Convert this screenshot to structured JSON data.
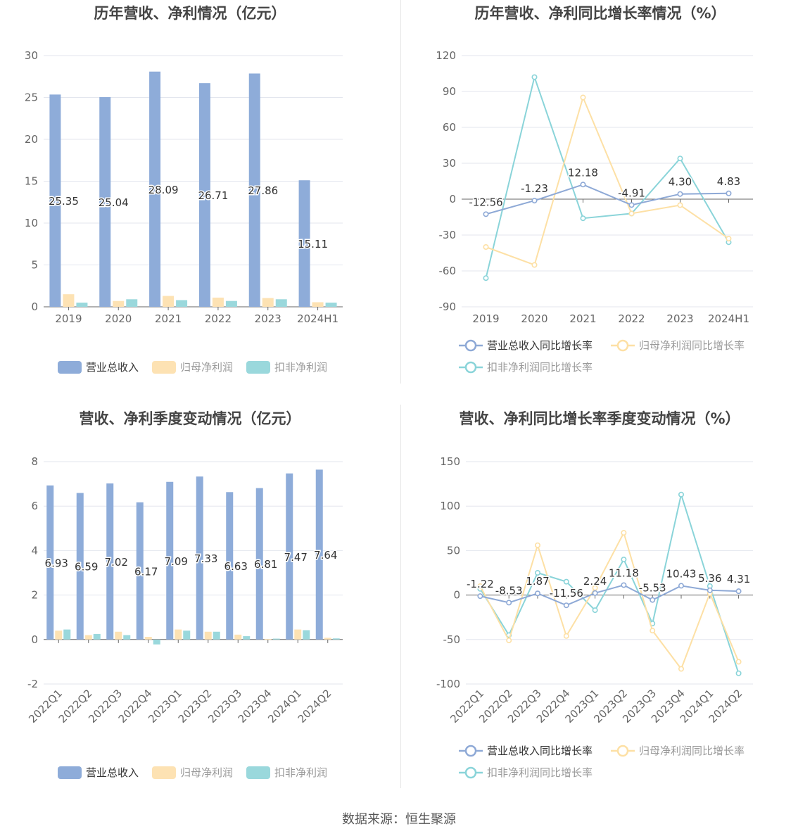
{
  "colors": {
    "revenue": "#8eacd9",
    "net_profit": "#fde2b3",
    "deducted_profit": "#9ad8dc",
    "revenue_line": "#8ea9d6",
    "net_line": "#fde0a5",
    "deducted_line": "#8ad4d9",
    "axis_text": "#666666",
    "title_text": "#444444",
    "grid": "#e3e6ee"
  },
  "footer": {
    "source": "数据来源：恒生聚源"
  },
  "chart_data": [
    {
      "type": "bar",
      "title": "历年营收、净利情况（亿元）",
      "categories": [
        "2019",
        "2020",
        "2021",
        "2022",
        "2023",
        "2024H1"
      ],
      "ylim": [
        0,
        30
      ],
      "yticks": [
        0,
        5,
        10,
        15,
        20,
        25,
        30
      ],
      "series": [
        {
          "name": "营业总收入",
          "values": [
            25.35,
            25.04,
            28.09,
            26.71,
            27.86,
            15.11
          ],
          "labels": [
            "25.35",
            "25.04",
            "28.09",
            "26.71",
            "27.86",
            "15.11"
          ]
        },
        {
          "name": "归母净利润",
          "values": [
            1.5,
            0.7,
            1.3,
            1.1,
            1.05,
            0.55
          ]
        },
        {
          "name": "扣非净利润",
          "values": [
            0.5,
            0.9,
            0.8,
            0.7,
            0.9,
            0.5
          ]
        }
      ],
      "legend": [
        "营业总收入",
        "归母净利润",
        "扣非净利润"
      ]
    },
    {
      "type": "line",
      "title": "历年营收、净利同比增长率情况（%）",
      "categories": [
        "2019",
        "2020",
        "2021",
        "2022",
        "2023",
        "2024H1"
      ],
      "ylim": [
        -90,
        120
      ],
      "yticks": [
        -90,
        -60,
        -30,
        0,
        30,
        60,
        90,
        120
      ],
      "series": [
        {
          "name": "营业总收入同比增长率",
          "values": [
            -12.56,
            -1.23,
            12.18,
            -4.91,
            4.3,
            4.83
          ],
          "labels": [
            "-12.56",
            "-1.23",
            "12.18",
            "-4.91",
            "4.30",
            "4.83"
          ]
        },
        {
          "name": "归母净利润同比增长率",
          "values": [
            -40,
            -55,
            85,
            -12,
            -5,
            -33
          ]
        },
        {
          "name": "扣非净利润同比增长率",
          "values": [
            -66,
            102,
            -16,
            -12,
            34,
            -36
          ]
        }
      ],
      "legend": [
        "营业总收入同比增长率",
        "归母净利润同比增长率",
        "扣非净利润同比增长率"
      ]
    },
    {
      "type": "bar",
      "title": "营收、净利季度变动情况（亿元）",
      "categories": [
        "2022Q1",
        "2022Q2",
        "2022Q3",
        "2022Q4",
        "2023Q1",
        "2023Q2",
        "2023Q3",
        "2023Q4",
        "2024Q1",
        "2024Q2"
      ],
      "ylim": [
        -2,
        8
      ],
      "yticks": [
        -2,
        0,
        2,
        4,
        6,
        8
      ],
      "series": [
        {
          "name": "营业总收入",
          "values": [
            6.93,
            6.59,
            7.02,
            6.17,
            7.09,
            7.33,
            6.63,
            6.81,
            7.47,
            7.64
          ],
          "labels": [
            "6.93",
            "6.59",
            "7.02",
            "6.17",
            "7.09",
            "7.33",
            "6.63",
            "6.81",
            "7.47",
            "7.64"
          ]
        },
        {
          "name": "归母净利润",
          "values": [
            0.4,
            0.2,
            0.35,
            0.12,
            0.45,
            0.35,
            0.22,
            0.02,
            0.45,
            0.08
          ]
        },
        {
          "name": "扣非净利润",
          "values": [
            0.45,
            0.25,
            0.2,
            -0.22,
            0.4,
            0.35,
            0.15,
            0.04,
            0.42,
            0.05
          ]
        }
      ],
      "legend": [
        "营业总收入",
        "归母净利润",
        "扣非净利润"
      ]
    },
    {
      "type": "line",
      "title": "营收、净利同比增长率季度变动情况（%）",
      "categories": [
        "2022Q1",
        "2022Q2",
        "2022Q3",
        "2022Q4",
        "2023Q1",
        "2023Q2",
        "2023Q3",
        "2023Q4",
        "2024Q1",
        "2024Q2"
      ],
      "ylim": [
        -100,
        150
      ],
      "yticks": [
        -100,
        -50,
        0,
        50,
        100,
        150
      ],
      "series": [
        {
          "name": "营业总收入同比增长率",
          "values": [
            -1.22,
            -8.53,
            1.87,
            -11.56,
            2.24,
            11.18,
            -5.53,
            10.43,
            5.36,
            4.31
          ],
          "labels": [
            "-1.22",
            "-8.53",
            "1.87",
            "-11.56",
            "2.24",
            "11.18",
            "-5.53",
            "10.43",
            "5.36",
            "4.31"
          ]
        },
        {
          "name": "归母净利润同比增长率",
          "values": [
            10,
            -51,
            56,
            -46,
            8,
            70,
            -40,
            -83,
            2,
            -75
          ]
        },
        {
          "name": "扣非净利润同比增长率",
          "values": [
            7,
            -45,
            25,
            15,
            -17,
            40,
            -32,
            113,
            10,
            -88
          ]
        }
      ],
      "legend": [
        "营业总收入同比增长率",
        "归母净利润同比增长率",
        "扣非净利润同比增长率"
      ]
    }
  ]
}
